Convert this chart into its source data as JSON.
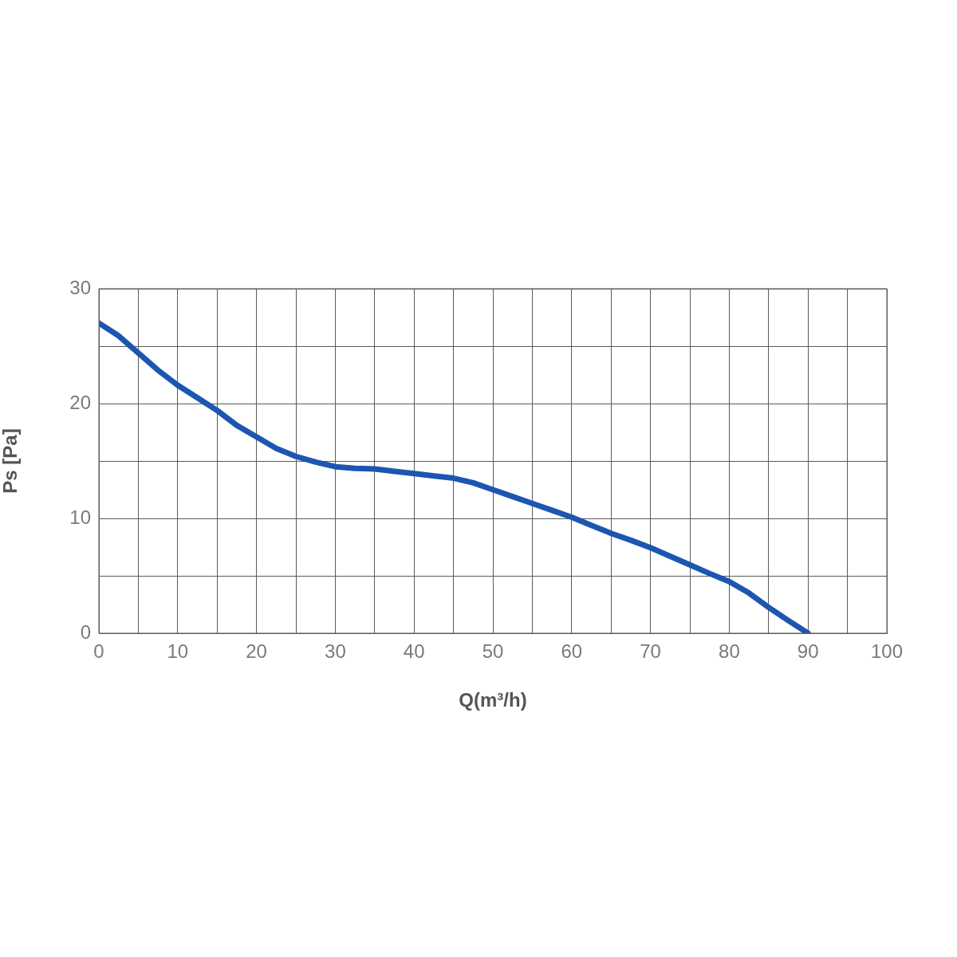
{
  "chart_data": {
    "type": "line",
    "xlabel": "Q(m³/h)",
    "ylabel": "Ps [Pa]",
    "x": [
      0,
      2.5,
      5,
      7.5,
      10,
      12.5,
      15,
      17.5,
      20,
      22.5,
      25,
      27.5,
      30,
      32.5,
      35,
      37.5,
      40,
      42.5,
      45,
      47.5,
      50,
      52.5,
      55,
      57.5,
      60,
      62.5,
      65,
      67.5,
      70,
      72.5,
      75,
      77.5,
      80,
      82.5,
      85,
      87.5,
      90
    ],
    "series": [
      {
        "color": "#1c56b0",
        "values": [
          27.0,
          25.9,
          24.4,
          22.9,
          21.6,
          20.5,
          19.4,
          18.1,
          17.1,
          16.1,
          15.4,
          14.9,
          14.5,
          14.35,
          14.3,
          14.1,
          13.9,
          13.7,
          13.5,
          13.1,
          12.5,
          11.9,
          11.3,
          10.7,
          10.1,
          9.4,
          8.7,
          8.1,
          7.45,
          6.7,
          5.95,
          5.2,
          4.5,
          3.5,
          2.25,
          1.1,
          0
        ]
      }
    ],
    "xlim": [
      0,
      100
    ],
    "ylim": [
      0,
      30
    ],
    "xticks": [
      0,
      {
        "value": 5,
        "label": null
      },
      10,
      {
        "value": 15,
        "label": null
      },
      20,
      {
        "value": 25,
        "label": null
      },
      30,
      {
        "value": 35,
        "label": null
      },
      40,
      {
        "value": 45,
        "label": null
      },
      50,
      {
        "value": 55,
        "label": null
      },
      60,
      {
        "value": 65,
        "label": null
      },
      70,
      {
        "value": 75,
        "label": null
      },
      80,
      {
        "value": 85,
        "label": null
      },
      90,
      {
        "value": 95,
        "label": null
      },
      100
    ],
    "yticks": [
      0,
      {
        "value": 5,
        "label": null
      },
      10,
      {
        "value": 15,
        "label": null
      },
      20,
      {
        "value": 25,
        "label": null
      },
      30
    ],
    "grid": true,
    "marker": "none",
    "line_style": "solid",
    "legend": false
  }
}
